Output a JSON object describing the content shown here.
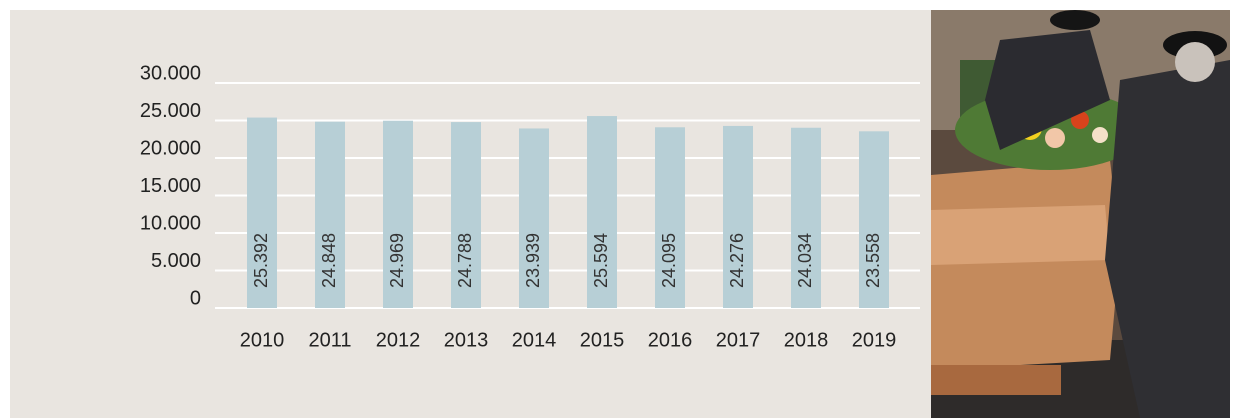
{
  "chart_data": {
    "type": "bar",
    "categories": [
      "2010",
      "2011",
      "2012",
      "2013",
      "2014",
      "2015",
      "2016",
      "2017",
      "2018",
      "2019"
    ],
    "values": [
      25392,
      24848,
      24969,
      24788,
      23939,
      25594,
      24095,
      24276,
      24034,
      23558
    ],
    "value_labels": [
      "25.392",
      "24.848",
      "24.969",
      "24.788",
      "23.939",
      "25.594",
      "24.095",
      "24.276",
      "24.034",
      "23.558"
    ],
    "color": "#b7cfd6",
    "ylim": [
      0,
      30000
    ],
    "yticks": [
      0,
      {
        "value": 5000,
        "label": "5.000"
      },
      {
        "value": 10000,
        "label": "10.000"
      },
      {
        "value": 15000,
        "label": "15.000"
      },
      {
        "value": 20000,
        "label": "20.000"
      },
      {
        "value": 25000,
        "label": "25.000"
      },
      {
        "value": 30000,
        "label": "30.000"
      }
    ],
    "grid": true
  }
}
